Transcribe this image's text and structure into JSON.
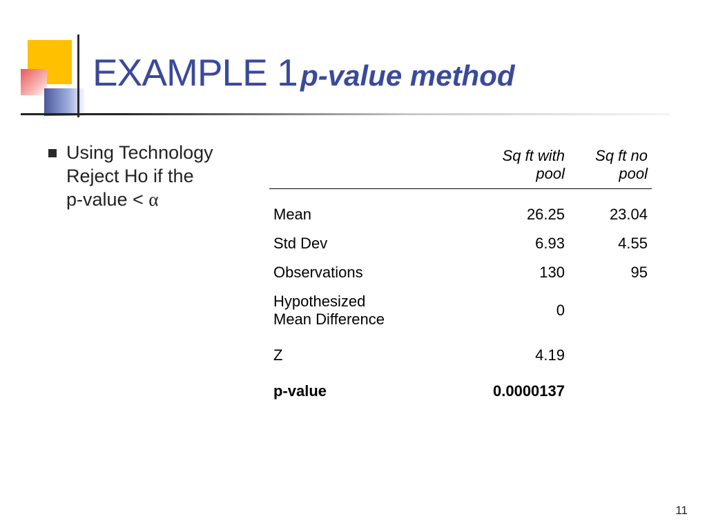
{
  "colors": {
    "title": "#3a4a9a",
    "text": "#222222",
    "bullet": "#2a2a2a",
    "deco_yellow": "#ffc000",
    "deco_salmon": "#e85a5a",
    "deco_slate": "#4a5a9a",
    "rule_dark": "#222222",
    "background": "#ffffff"
  },
  "title": {
    "main": "EXAMPLE 1",
    "sub": "p-value method",
    "main_fontsize": 55,
    "sub_fontsize": 42
  },
  "bullet": {
    "line1": "Using Technology",
    "line2": "Reject Ho if the",
    "line3_prefix": "p-value < ",
    "alpha": "α",
    "fontsize": 27
  },
  "table": {
    "fontsize": 22,
    "headers": {
      "blank": "",
      "col1": "Sq ft with pool",
      "col2": "Sq ft no pool"
    },
    "rows": [
      {
        "label": "Mean",
        "c1": "26.25",
        "c2": "23.04"
      },
      {
        "label": "Std Dev",
        "c1": "6.93",
        "c2": "4.55"
      },
      {
        "label": "Observations",
        "c1": "130",
        "c2": "95"
      },
      {
        "label": "Hypothesized\n    Mean Difference",
        "c1": "0",
        "c2": ""
      },
      {
        "label": "Z",
        "c1": "4.19",
        "c2": "",
        "zrow": true
      },
      {
        "label": "p-value",
        "c1": "0.0000137",
        "c2": "",
        "bold": true
      }
    ]
  },
  "page_number": "11"
}
